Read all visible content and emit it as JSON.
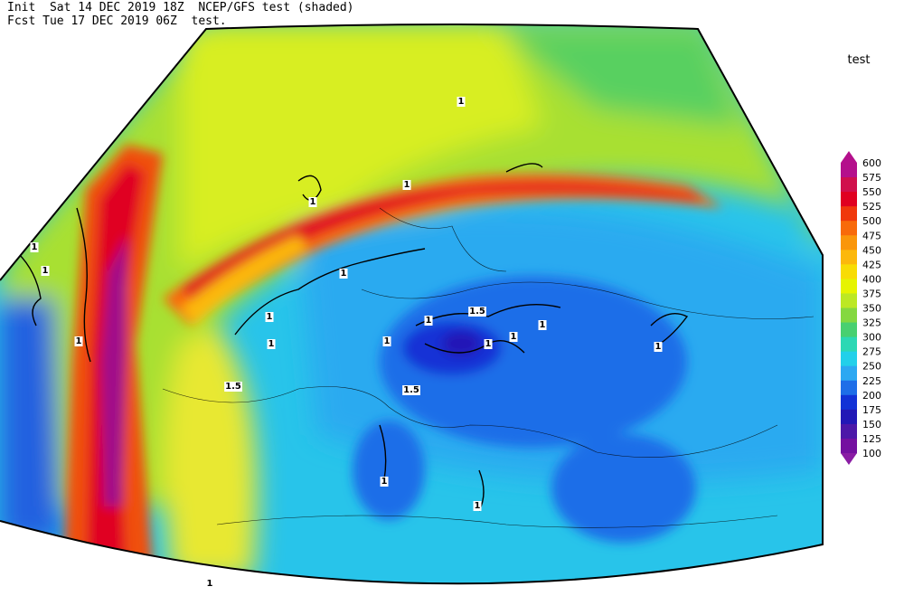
{
  "header": {
    "line1": "Init  Sat 14 DEC 2019 18Z  NCEP/GFS test (shaded)",
    "line2": "Fcst Tue 17 DEC 2019 06Z  test."
  },
  "legend": {
    "title": "test",
    "levels": [
      600,
      575,
      550,
      525,
      500,
      475,
      450,
      425,
      400,
      375,
      350,
      325,
      300,
      275,
      250,
      225,
      200,
      175,
      150,
      125,
      100
    ],
    "colors": [
      "#b4108c",
      "#d0104c",
      "#e00020",
      "#f0380c",
      "#f86a0a",
      "#fa960a",
      "#fcb80c",
      "#f8dc04",
      "#e6f400",
      "#bce824",
      "#84d840",
      "#48d070",
      "#2cd8b4",
      "#22d0ea",
      "#2ca8f2",
      "#1e6ee8",
      "#1232d6",
      "#2218b6",
      "#4c18a8",
      "#7410a0",
      "#8a1ca4"
    ]
  },
  "contour_labels": [
    "1",
    "1",
    "1",
    "1",
    "1",
    "1.5",
    "1",
    "1",
    "1.5",
    "1",
    "1",
    "1.5",
    "1",
    "1",
    "1",
    "1",
    "1",
    "1",
    "1",
    "1",
    "1"
  ]
}
